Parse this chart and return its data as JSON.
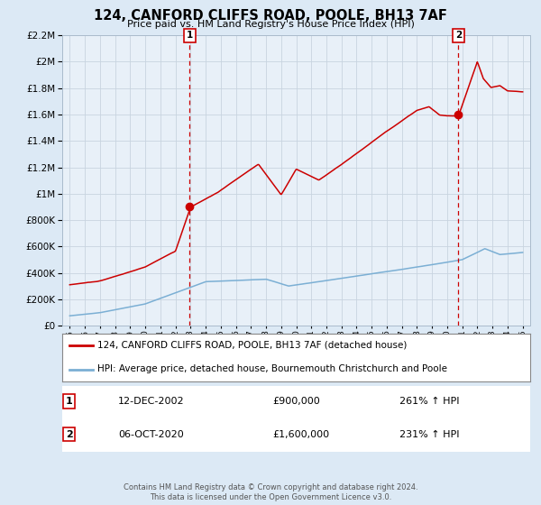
{
  "title": "124, CANFORD CLIFFS ROAD, POOLE, BH13 7AF",
  "subtitle": "Price paid vs. HM Land Registry's House Price Index (HPI)",
  "red_label": "124, CANFORD CLIFFS ROAD, POOLE, BH13 7AF (detached house)",
  "blue_label": "HPI: Average price, detached house, Bournemouth Christchurch and Poole",
  "annotation1_date": "12-DEC-2002",
  "annotation1_price": "£900,000",
  "annotation1_hpi": "261% ↑ HPI",
  "annotation2_date": "06-OCT-2020",
  "annotation2_price": "£1,600,000",
  "annotation2_hpi": "231% ↑ HPI",
  "footer": "Contains HM Land Registry data © Crown copyright and database right 2024.\nThis data is licensed under the Open Government Licence v3.0.",
  "bg_color": "#dce9f5",
  "plot_bg_color": "#dce9f5",
  "chart_inner_bg": "#e8f0f8",
  "red_color": "#cc0000",
  "blue_color": "#7bafd4",
  "vline_color": "#cc0000",
  "marker1_x": 2002.95,
  "marker1_y": 900000,
  "marker2_x": 2020.75,
  "marker2_y": 1600000,
  "ylim": [
    0,
    2200000
  ],
  "xlim": [
    1994.5,
    2025.5
  ]
}
